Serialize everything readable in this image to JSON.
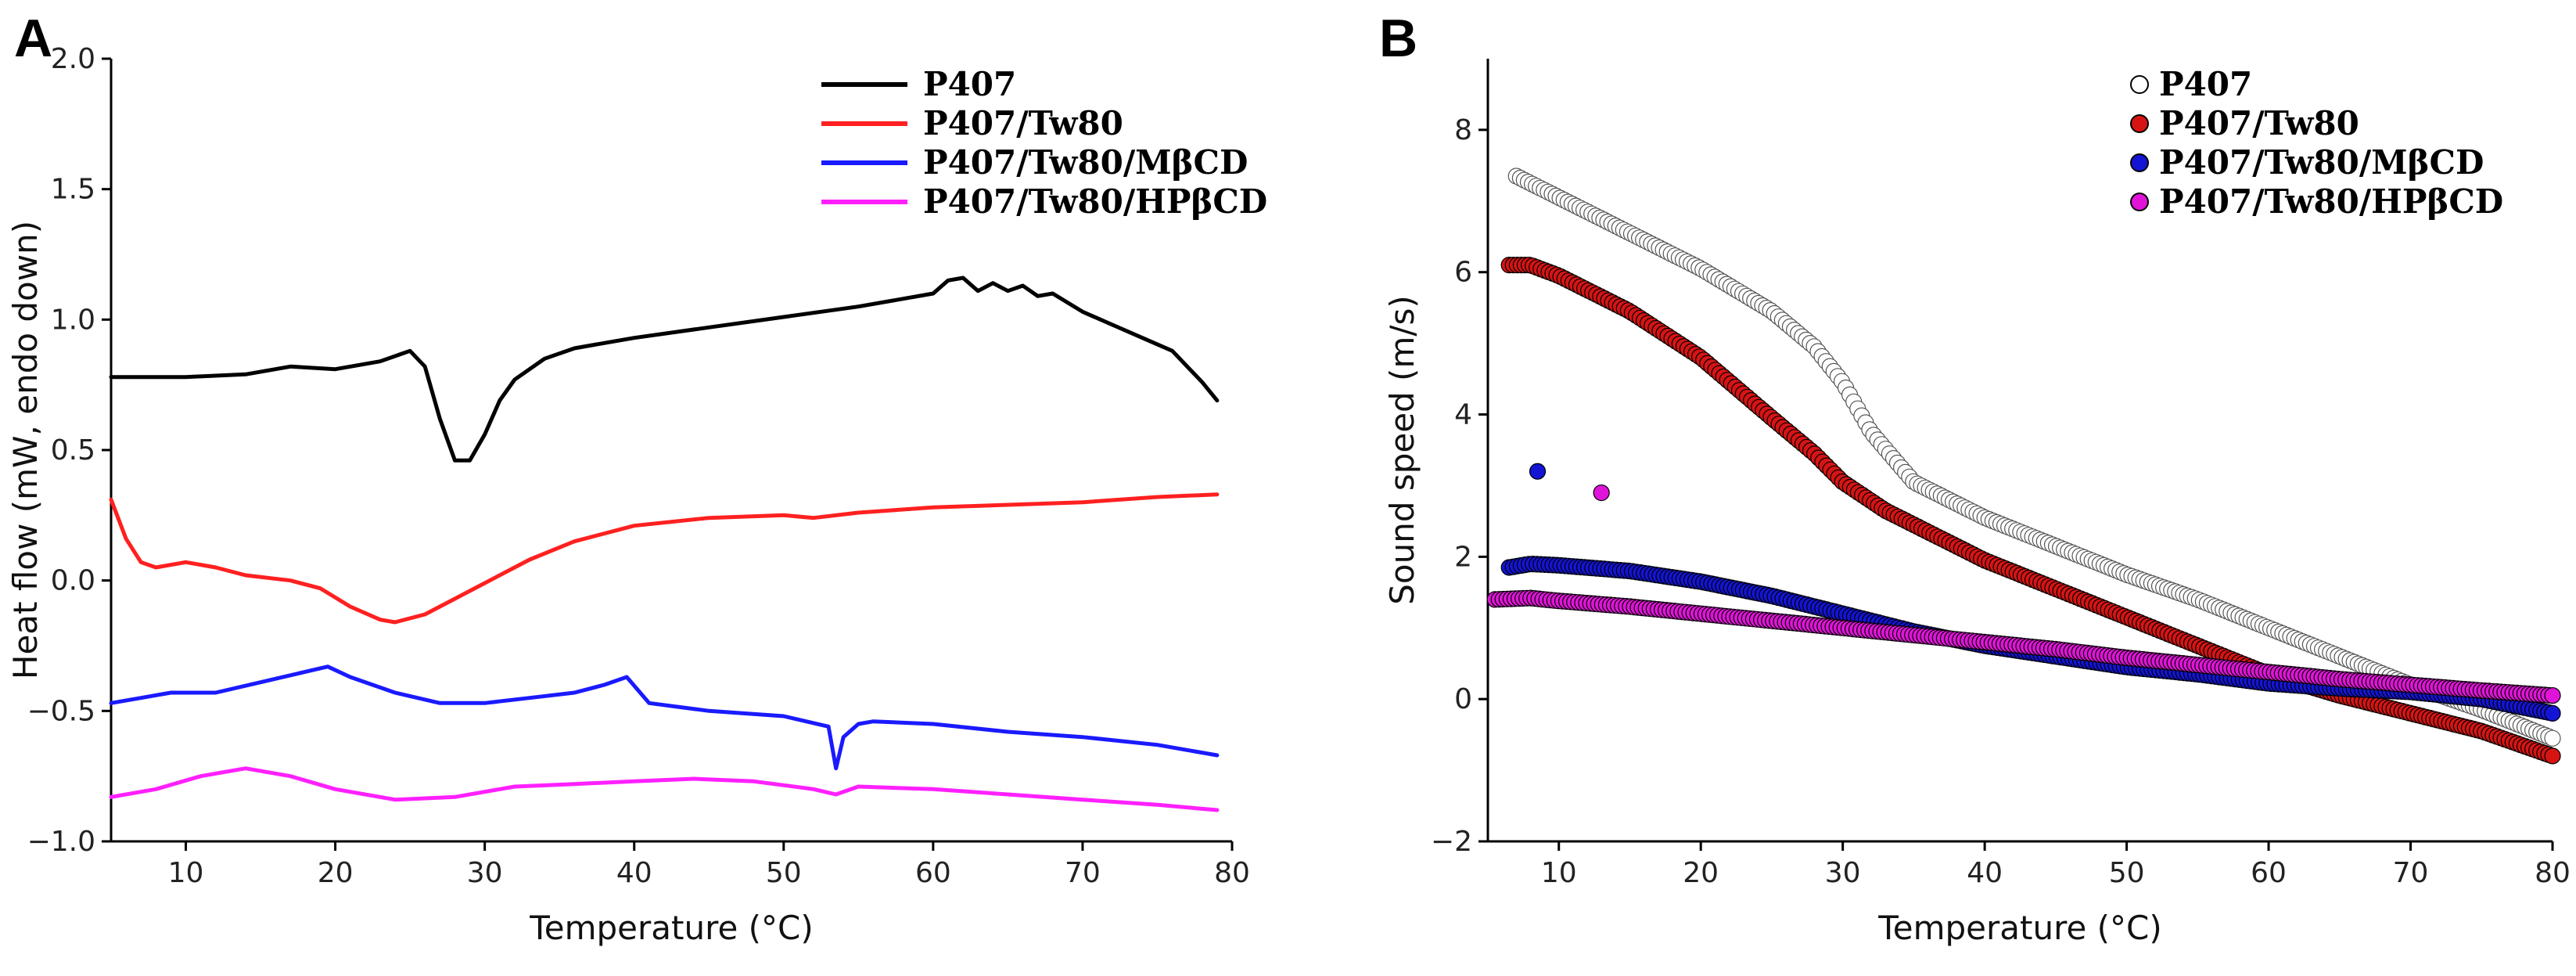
{
  "colors": {
    "black": "#000000",
    "red": "#ff2020",
    "blue": "#1a1aff",
    "magenta": "#ff20ff",
    "red_fill": "#d61414",
    "blue_fill": "#1414d4",
    "magenta_fill": "#e014d8"
  },
  "chart_data": [
    {
      "panel": "A",
      "type": "line",
      "xlabel": "Temperature (°C)",
      "ylabel": "Heat flow (mW, endo down)",
      "xlim": [
        5,
        80
      ],
      "ylim": [
        -1.0,
        2.0
      ],
      "xticks": [
        10,
        20,
        30,
        40,
        50,
        60,
        70,
        80
      ],
      "yticks": [
        -1.0,
        -0.5,
        0.0,
        0.5,
        1.0,
        1.5,
        2.0
      ],
      "xtick_labels": [
        "10",
        "20",
        "30",
        "40",
        "50",
        "60",
        "70",
        "80"
      ],
      "ytick_labels": [
        "−1.0",
        "−0.5",
        "0.0",
        "0.5",
        "1.0",
        "1.5",
        "2.0"
      ],
      "legend_position": "top-right",
      "series": [
        {
          "name": "P407",
          "color": "black",
          "x": [
            5,
            10,
            14,
            17,
            20,
            23,
            25,
            26,
            27,
            28,
            29,
            30,
            31,
            32,
            34,
            36,
            38,
            40,
            45,
            50,
            55,
            58,
            60,
            61,
            62,
            63,
            64,
            65,
            66,
            67,
            68,
            70,
            72,
            74,
            76,
            78,
            79
          ],
          "y": [
            0.78,
            0.78,
            0.79,
            0.82,
            0.81,
            0.84,
            0.88,
            0.82,
            0.62,
            0.46,
            0.46,
            0.56,
            0.69,
            0.77,
            0.85,
            0.89,
            0.91,
            0.93,
            0.97,
            1.01,
            1.05,
            1.08,
            1.1,
            1.15,
            1.16,
            1.11,
            1.14,
            1.11,
            1.13,
            1.09,
            1.1,
            1.03,
            0.98,
            0.93,
            0.88,
            0.76,
            0.69
          ]
        },
        {
          "name": "P407/Tw80",
          "color": "red",
          "x": [
            5,
            6,
            7,
            8,
            10,
            12,
            14,
            17,
            19,
            21,
            23,
            24,
            26,
            28,
            30,
            33,
            36,
            40,
            45,
            50,
            52,
            55,
            60,
            65,
            70,
            75,
            79
          ],
          "y": [
            0.31,
            0.16,
            0.07,
            0.05,
            0.07,
            0.05,
            0.02,
            0.0,
            -0.03,
            -0.1,
            -0.15,
            -0.16,
            -0.13,
            -0.07,
            -0.01,
            0.08,
            0.15,
            0.21,
            0.24,
            0.25,
            0.24,
            0.26,
            0.28,
            0.29,
            0.3,
            0.32,
            0.33
          ]
        },
        {
          "name": "P407/Tw80/MβCD",
          "color": "blue",
          "x": [
            5,
            7,
            9,
            12,
            15,
            18,
            19.5,
            21,
            24,
            27,
            30,
            33,
            36,
            38,
            39.5,
            41,
            45,
            50,
            53,
            53.5,
            54,
            55,
            56,
            60,
            65,
            70,
            75,
            79
          ],
          "y": [
            -0.47,
            -0.45,
            -0.43,
            -0.43,
            -0.39,
            -0.35,
            -0.33,
            -0.37,
            -0.43,
            -0.47,
            -0.47,
            -0.45,
            -0.43,
            -0.4,
            -0.37,
            -0.47,
            -0.5,
            -0.52,
            -0.56,
            -0.72,
            -0.6,
            -0.55,
            -0.54,
            -0.55,
            -0.58,
            -0.6,
            -0.63,
            -0.67
          ]
        },
        {
          "name": "P407/Tw80/HPβCD",
          "color": "magenta",
          "x": [
            5,
            8,
            11,
            14,
            17,
            20,
            24,
            28,
            32,
            36,
            40,
            44,
            48,
            52,
            53.5,
            55,
            60,
            65,
            70,
            75,
            79
          ],
          "y": [
            -0.83,
            -0.8,
            -0.75,
            -0.72,
            -0.75,
            -0.8,
            -0.84,
            -0.83,
            -0.79,
            -0.78,
            -0.77,
            -0.76,
            -0.77,
            -0.8,
            -0.82,
            -0.79,
            -0.8,
            -0.82,
            -0.84,
            -0.86,
            -0.88
          ]
        }
      ]
    },
    {
      "panel": "B",
      "type": "scatter",
      "xlabel": "Temperature (°C)",
      "ylabel": "Sound speed (m/s)",
      "xlim": [
        5,
        80
      ],
      "ylim": [
        -2,
        9
      ],
      "xticks": [
        10,
        20,
        30,
        40,
        50,
        60,
        70,
        80
      ],
      "yticks": [
        -2,
        0,
        2,
        4,
        6,
        8
      ],
      "xtick_labels": [
        "10",
        "20",
        "30",
        "40",
        "50",
        "60",
        "70",
        "80"
      ],
      "ytick_labels": [
        "−2",
        "0",
        "2",
        "4",
        "6",
        "8"
      ],
      "legend_position": "top-right",
      "series": [
        {
          "name": "P407",
          "color": "black",
          "marker": "open-circle",
          "x": [
            7,
            10,
            15,
            20,
            25,
            28,
            30,
            32,
            35,
            40,
            45,
            50,
            55,
            60,
            65,
            70,
            75,
            80
          ],
          "y": [
            7.35,
            7.05,
            6.55,
            6.05,
            5.45,
            4.95,
            4.45,
            3.75,
            3.05,
            2.55,
            2.15,
            1.75,
            1.4,
            1.0,
            0.6,
            0.2,
            -0.15,
            -0.55
          ]
        },
        {
          "name": "P407/Tw80",
          "color": "red",
          "marker": "filled-circle",
          "x": [
            6.5,
            8,
            10,
            15,
            20,
            25,
            28,
            30,
            33,
            35,
            40,
            45,
            50,
            55,
            60,
            65,
            70,
            75,
            80
          ],
          "y": [
            6.1,
            6.1,
            5.95,
            5.45,
            4.8,
            3.95,
            3.45,
            3.05,
            2.65,
            2.45,
            1.95,
            1.55,
            1.15,
            0.75,
            0.35,
            0.05,
            -0.2,
            -0.45,
            -0.8
          ],
          "outliers": []
        },
        {
          "name": "P407/Tw80/MβCD",
          "color": "blue",
          "marker": "filled-circle",
          "x": [
            6.5,
            8,
            10,
            15,
            20,
            25,
            30,
            35,
            40,
            45,
            50,
            55,
            60,
            65,
            70,
            75,
            80
          ],
          "y": [
            1.85,
            1.9,
            1.88,
            1.8,
            1.65,
            1.45,
            1.2,
            0.95,
            0.75,
            0.6,
            0.45,
            0.35,
            0.22,
            0.15,
            0.1,
            0.0,
            -0.2
          ],
          "outliers": [
            {
              "x": 8.5,
              "y": 3.2
            }
          ]
        },
        {
          "name": "P407/Tw80/HPβCD",
          "color": "magenta",
          "marker": "filled-circle",
          "x": [
            5.5,
            8,
            10,
            15,
            20,
            25,
            30,
            35,
            40,
            45,
            50,
            55,
            60,
            65,
            70,
            75,
            80
          ],
          "y": [
            1.4,
            1.42,
            1.38,
            1.3,
            1.2,
            1.1,
            1.0,
            0.9,
            0.8,
            0.7,
            0.58,
            0.48,
            0.38,
            0.28,
            0.2,
            0.12,
            0.05
          ],
          "outliers": [
            {
              "x": 13,
              "y": 2.9
            }
          ]
        }
      ]
    }
  ]
}
